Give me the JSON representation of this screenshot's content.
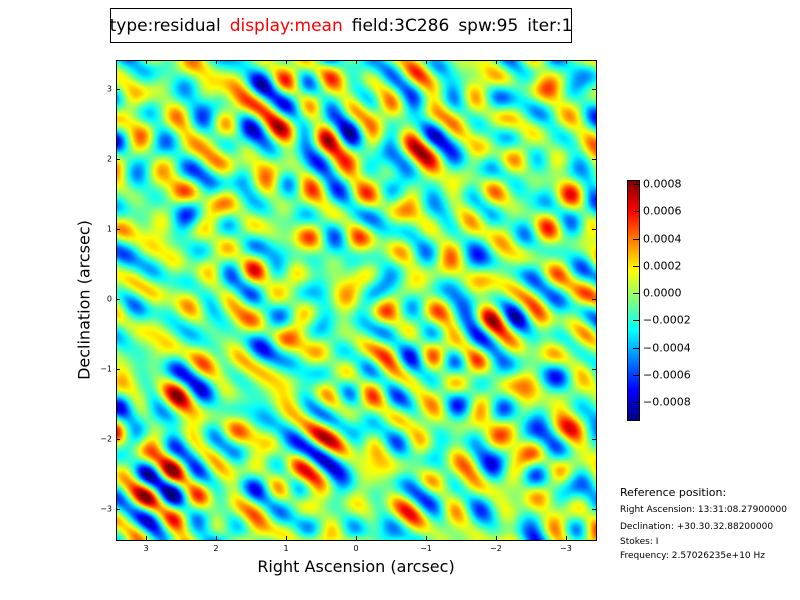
{
  "title": {
    "type": "type:residual",
    "display": "display:mean",
    "field": "field:3C286",
    "spw": "spw:95",
    "iter": "iter:1"
  },
  "chart_data": {
    "type": "heatmap",
    "title": "type:residual display:mean field:3C286 spw:95 iter:1",
    "xlabel": "Right Ascension (arcsec)",
    "ylabel": "Declination (arcsec)",
    "xlim": [
      3.43,
      -3.43
    ],
    "ylim": [
      -3.45,
      3.42
    ],
    "xticks": [
      3,
      2,
      1,
      0,
      -1,
      -2,
      -3
    ],
    "xtick_labels": [
      "3",
      "2",
      "1",
      "0",
      "−1",
      "−2",
      "−3"
    ],
    "yticks": [
      3,
      2,
      1,
      0,
      -1,
      -2,
      -3
    ],
    "ytick_labels": [
      "3",
      "2",
      "1",
      "0",
      "−1",
      "−2",
      "−3"
    ],
    "colormap": "jet",
    "colorbar": {
      "vmin": -0.00093,
      "vmax": 0.00083,
      "ticks": [
        0.0008,
        0.0006,
        0.0004,
        0.0002,
        0.0,
        -0.0002,
        -0.0004,
        -0.0006,
        -0.0008
      ],
      "tick_labels": [
        "0.0008",
        "0.0006",
        "0.0004",
        "0.0002",
        "0.0000",
        "−0.0002",
        "−0.0004",
        "−0.0006",
        "−0.0008"
      ]
    }
  },
  "reference": {
    "heading": "Reference position:",
    "ra": "Right Ascension: 13:31:08.27900000",
    "dec": "Declination: +30.30.32.88200000",
    "stokes": "Stokes: I",
    "frequency": "Frequency: 2.57026235e+10 Hz"
  },
  "colors": {
    "title_highlight": "#ff0000"
  }
}
